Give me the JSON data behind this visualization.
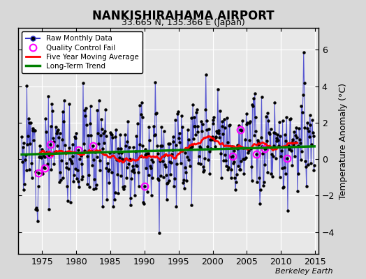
{
  "title": "NANKISHIRAHAMA AIRPORT",
  "subtitle": "33.665 N, 135.366 E (Japan)",
  "ylabel": "Temperature Anomaly (°C)",
  "xlabel_note": "Berkeley Earth",
  "xlim": [
    1971.5,
    2015.5
  ],
  "ylim": [
    -5.2,
    7.2
  ],
  "yticks": [
    -4,
    -2,
    0,
    2,
    4,
    6
  ],
  "xticks": [
    1975,
    1980,
    1985,
    1990,
    1995,
    2000,
    2005,
    2010,
    2015
  ],
  "raw_line_color": "#3333cc",
  "raw_marker_color": "black",
  "qc_fail_color": "magenta",
  "moving_avg_color": "red",
  "trend_color": "green",
  "fig_bg_color": "#d8d8d8",
  "ax_bg_color": "#e8e8e8",
  "grid_color": "#ffffff",
  "seed": 12
}
